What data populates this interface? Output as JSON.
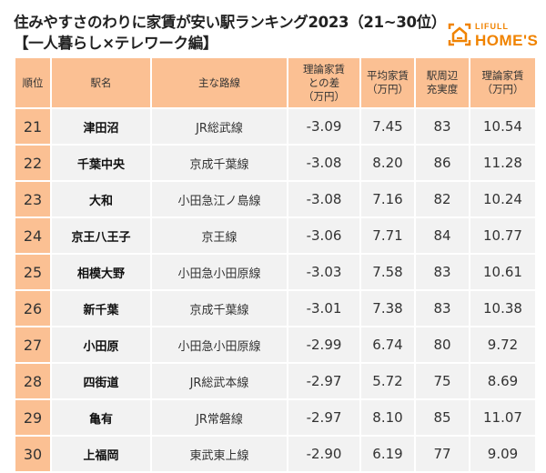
{
  "title": {
    "line1": "住みやすさのわりに家賃が安い駅ランキング2023（21~30位）",
    "line2": "【一人暮らし×テレワーク編】"
  },
  "logo": {
    "top": "LIFULL",
    "bottom": "HOME'S"
  },
  "colors": {
    "header": "#fbc093",
    "row": "#f2f2f2",
    "brand": "#f08300"
  },
  "headers": [
    "順位",
    "駅名",
    "主な路線",
    "理論家賃との差（万円）",
    "平均家賃（万円）",
    "駅周辺充実度",
    "理論家賃（万円）"
  ],
  "rows": [
    [
      "21",
      "津田沼",
      "JR総武線",
      "-3.09",
      "7.45",
      "83",
      "10.54"
    ],
    [
      "22",
      "千葉中央",
      "京成千葉線",
      "-3.08",
      "8.20",
      "86",
      "11.28"
    ],
    [
      "23",
      "大和",
      "小田急江ノ島線",
      "-3.08",
      "7.16",
      "82",
      "10.24"
    ],
    [
      "24",
      "京王八王子",
      "京王線",
      "-3.06",
      "7.71",
      "84",
      "10.77"
    ],
    [
      "25",
      "相模大野",
      "小田急小田原線",
      "-3.03",
      "7.58",
      "83",
      "10.61"
    ],
    [
      "26",
      "新千葉",
      "京成千葉線",
      "-3.01",
      "7.38",
      "83",
      "10.38"
    ],
    [
      "27",
      "小田原",
      "小田急小田原線",
      "-2.99",
      "6.74",
      "80",
      "9.72"
    ],
    [
      "28",
      "四街道",
      "JR総武本線",
      "-2.97",
      "5.72",
      "75",
      "8.69"
    ],
    [
      "29",
      "亀有",
      "JR常磐線",
      "-2.97",
      "8.10",
      "85",
      "11.07"
    ],
    [
      "30",
      "上福岡",
      "東武東上線",
      "-2.90",
      "6.19",
      "77",
      "9.09"
    ]
  ]
}
